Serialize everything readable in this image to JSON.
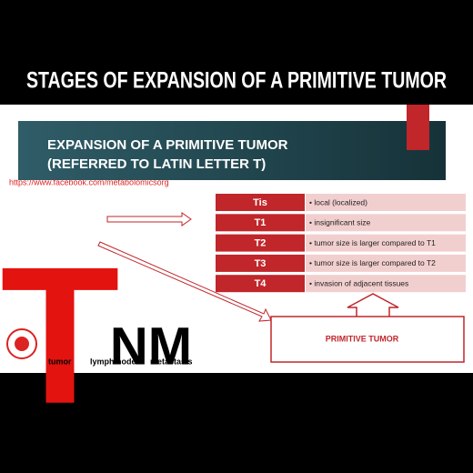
{
  "title": "STAGES OF EXPANSION OF A PRIMITIVE TUMOR",
  "slide": {
    "header": [
      "EXPANSION OF A PRIMITIVE TUMOR",
      "(REFERRED TO LATIN LETTER T)"
    ],
    "url": "https://www.facebook.com/metabolomicsorg",
    "big_letter": "T",
    "letters": "NM",
    "labels": [
      "tumor",
      "lymph node",
      "metastasis"
    ],
    "stages": [
      [
        "Tis",
        "• local (localized)"
      ],
      [
        "T1",
        "• insignificant size"
      ],
      [
        "T2",
        "• tumor size is larger compared to T1"
      ],
      [
        "T3",
        "• tumor size is larger compared to T2"
      ],
      [
        "T4",
        "• invasion of adjacent tissues"
      ]
    ],
    "box_label": "PRIMITIVE TUMOR"
  }
}
